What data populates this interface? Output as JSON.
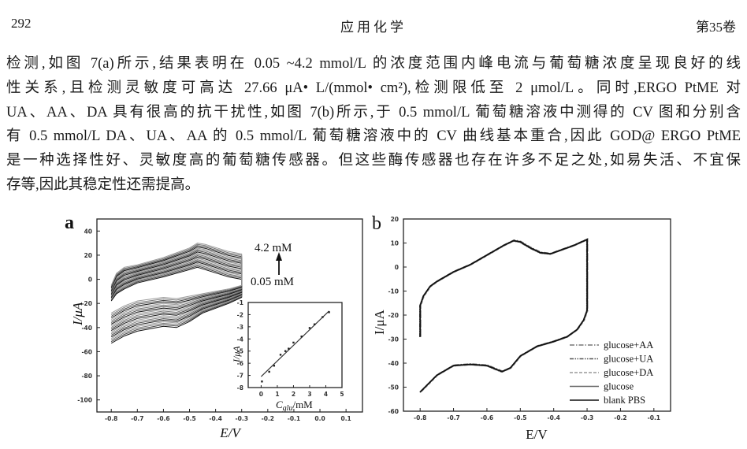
{
  "header": {
    "page_number": "292",
    "journal": "应用化学",
    "volume": "第35卷"
  },
  "paragraph": {
    "lines": [
      "检测,如图 7(a)所示,结果表明在 0.05 ~4.2 mmol/L 的浓度范围内峰电流与葡萄糖浓度呈现良好的线",
      "性关系,且检测灵敏度可高达 27.66 μA• L/(mmol• cm²),检测限低至 2 μmol/L。同时,ERGO PtME 对",
      "UA、AA、DA 具有很高的抗干扰性,如图 7(b)所示,于 0.5 mmol/L 葡萄糖溶液中测得的 CV 图和分别含",
      "有 0.5 mmol/L DA、UA、AA 的 0.5 mmol/L 葡萄糖溶液中的 CV 曲线基本重合,因此 GOD@ ERGO PtME",
      "是一种选择性好、灵敏度高的葡萄糖传感器。但这些酶传感器也存在许多不足之处,如易失活、不宜保",
      "存等,因此其稳定性还需提高。"
    ]
  },
  "chart_data": [
    {
      "panel": "a",
      "type": "line",
      "xlabel": "E/V",
      "ylabel": "I/μA",
      "xlim": [
        -0.855,
        0.163
      ],
      "ylim": [
        -110,
        50
      ],
      "xticks": [
        "-0.8",
        "-0.7",
        "-0.6",
        "-0.5",
        "-0.4",
        "-0.3",
        "-0.2",
        "-0.1",
        "0.0",
        "0.1"
      ],
      "yticks": [
        "40",
        "20",
        "0",
        "-20",
        "-40",
        "-60",
        "-80",
        "-100"
      ],
      "grid": false,
      "annotations": {
        "high": "4.2 mM",
        "low": "0.05 mM",
        "arrow": "up"
      },
      "series": [
        {
          "name": "4.2 mM",
          "points": [
            [
              -0.8,
              -5
            ],
            [
              -0.78,
              5
            ],
            [
              -0.75,
              10
            ],
            [
              -0.7,
              12
            ],
            [
              -0.6,
              18
            ],
            [
              -0.5,
              26
            ],
            [
              -0.45,
              30
            ],
            [
              -0.42,
              29
            ],
            [
              -0.35,
              23
            ],
            [
              -0.3,
              21
            ],
            [
              -0.3,
              -5
            ],
            [
              -0.35,
              -8
            ],
            [
              -0.45,
              -12
            ],
            [
              -0.5,
              -14
            ],
            [
              -0.55,
              -16
            ],
            [
              -0.6,
              -15
            ],
            [
              -0.7,
              -18
            ],
            [
              -0.75,
              -22
            ],
            [
              -0.8,
              -28
            ]
          ]
        },
        {
          "name": "0.05 mM",
          "points": [
            [
              -0.8,
              -18
            ],
            [
              -0.78,
              -12
            ],
            [
              -0.75,
              -8
            ],
            [
              -0.7,
              -3
            ],
            [
              -0.6,
              2
            ],
            [
              -0.5,
              8
            ],
            [
              -0.47,
              10
            ],
            [
              -0.44,
              8
            ],
            [
              -0.35,
              2
            ],
            [
              -0.3,
              0
            ],
            [
              -0.3,
              -15
            ],
            [
              -0.35,
              -20
            ],
            [
              -0.45,
              -28
            ],
            [
              -0.5,
              -35
            ],
            [
              -0.55,
              -40
            ],
            [
              -0.6,
              -39
            ],
            [
              -0.7,
              -43
            ],
            [
              -0.75,
              -47
            ],
            [
              -0.8,
              -53
            ]
          ]
        }
      ],
      "inset": {
        "type": "scatter",
        "xlabel_main": "C",
        "xlabel_sub": "glu",
        "xlabel_unit": "/mM",
        "ylabel": "I/μA",
        "xlim": [
          -0.8,
          5
        ],
        "ylim": [
          -8,
          -1
        ],
        "xticks": [
          "0",
          "1",
          "2",
          "3",
          "4",
          "5"
        ],
        "yticks": [
          "-1",
          "-2",
          "-3",
          "-4",
          "-5",
          "-6",
          "-7",
          "-8"
        ],
        "points": [
          [
            0.05,
            -7.5
          ],
          [
            0.5,
            -6.7
          ],
          [
            0.8,
            -6.2
          ],
          [
            1.2,
            -5.3
          ],
          [
            1.5,
            -5.0
          ],
          [
            1.7,
            -4.8
          ],
          [
            2.0,
            -4.3
          ],
          [
            2.5,
            -3.8
          ],
          [
            3.0,
            -3.1
          ],
          [
            3.3,
            -2.8
          ],
          [
            3.8,
            -2.2
          ],
          [
            4.2,
            -1.8
          ]
        ],
        "fit_line": [
          [
            0,
            -7.1
          ],
          [
            4.2,
            -1.7
          ]
        ]
      }
    },
    {
      "panel": "b",
      "type": "line",
      "xlabel": "E/V",
      "ylabel": "I/μA",
      "xlim": [
        -0.85,
        -0.05
      ],
      "ylim": [
        -60,
        20
      ],
      "xticks": [
        "-0.8",
        "-0.7",
        "-0.6",
        "-0.5",
        "-0.4",
        "-0.3",
        "-0.2",
        "-0.1"
      ],
      "yticks": [
        "20",
        "10",
        "0",
        "-10",
        "-20",
        "-30",
        "-40",
        "-50",
        "-60"
      ],
      "grid": false,
      "legend_position": "bottom-right",
      "points": [
        [
          -0.8,
          -29
        ],
        [
          -0.8,
          -16
        ],
        [
          -0.79,
          -12
        ],
        [
          -0.77,
          -8
        ],
        [
          -0.75,
          -6
        ],
        [
          -0.7,
          -2
        ],
        [
          -0.65,
          1
        ],
        [
          -0.6,
          5
        ],
        [
          -0.55,
          9
        ],
        [
          -0.52,
          11
        ],
        [
          -0.5,
          10.5
        ],
        [
          -0.47,
          8
        ],
        [
          -0.44,
          6
        ],
        [
          -0.41,
          5.5
        ],
        [
          -0.38,
          7
        ],
        [
          -0.34,
          9
        ],
        [
          -0.3,
          11.5
        ],
        [
          -0.3,
          -18
        ],
        [
          -0.31,
          -22
        ],
        [
          -0.33,
          -26
        ],
        [
          -0.36,
          -29
        ],
        [
          -0.4,
          -31
        ],
        [
          -0.45,
          -33
        ],
        [
          -0.5,
          -37
        ],
        [
          -0.53,
          -42
        ],
        [
          -0.555,
          -43.5
        ],
        [
          -0.6,
          -41
        ],
        [
          -0.65,
          -40.5
        ],
        [
          -0.7,
          -41
        ],
        [
          -0.75,
          -45
        ],
        [
          -0.8,
          -52
        ]
      ],
      "series": [
        {
          "name": "glucose+AA",
          "style": "dash-dot",
          "color": "#777777"
        },
        {
          "name": "glucose+UA",
          "style": "dash-dot-dot",
          "color": "#555555"
        },
        {
          "name": "glucose+DA",
          "style": "dashed",
          "color": "#999999"
        },
        {
          "name": "glucose",
          "style": "solid",
          "color": "#666666"
        },
        {
          "name": "blank PBS",
          "style": "solid",
          "color": "#111111"
        }
      ]
    }
  ]
}
